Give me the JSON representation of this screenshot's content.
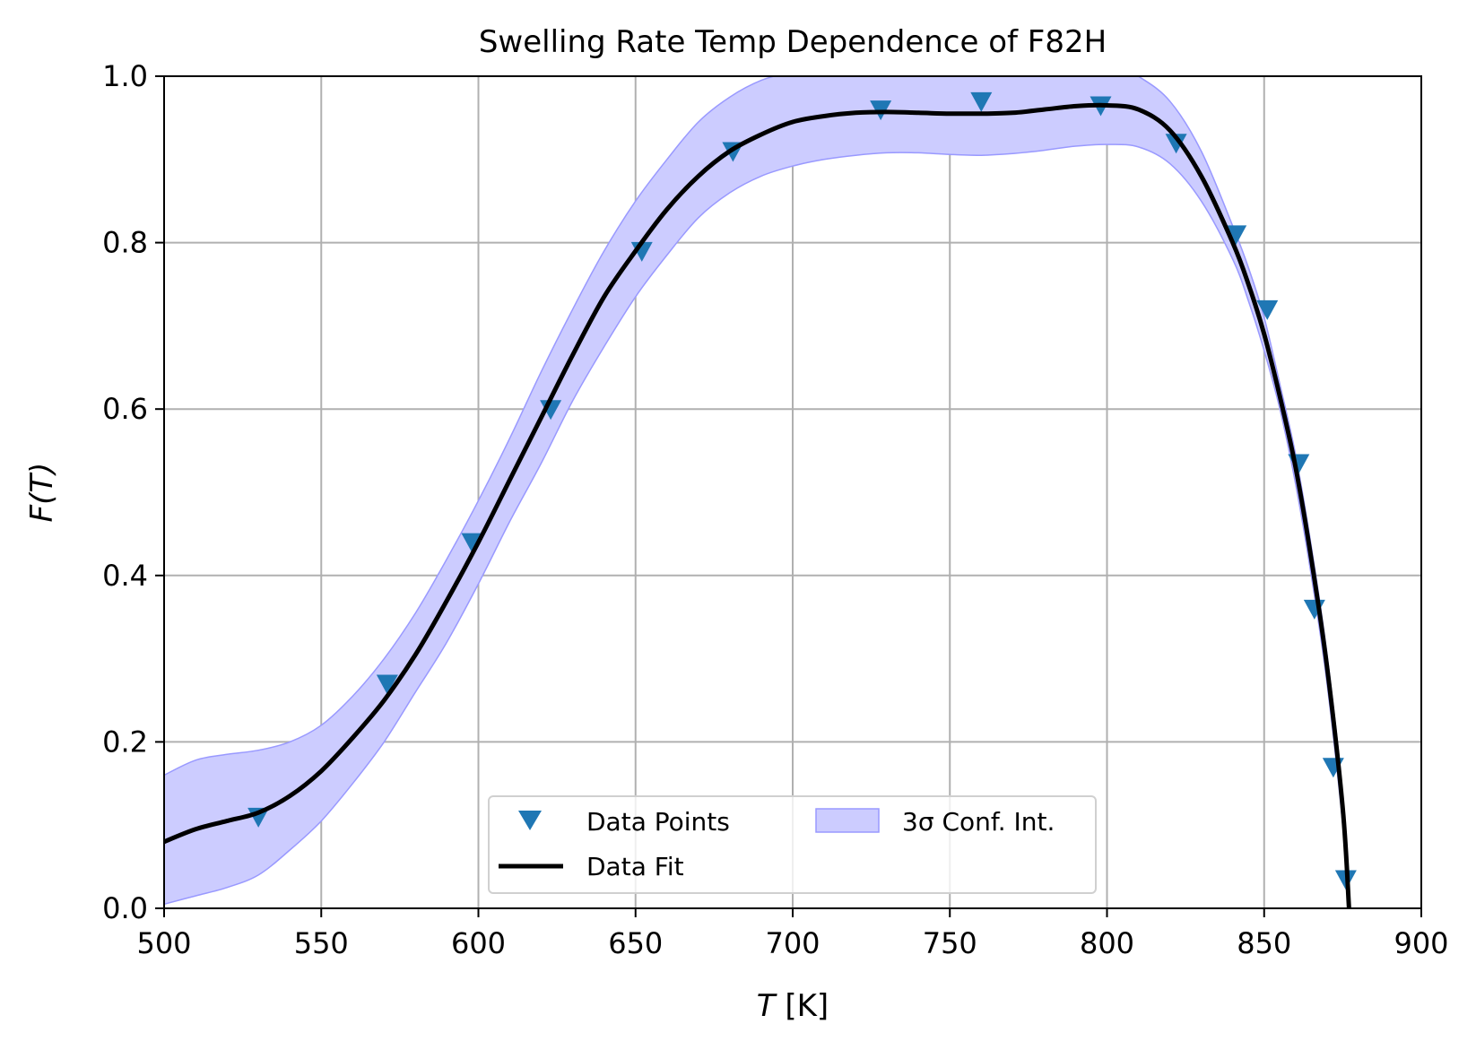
{
  "chart_data": {
    "type": "scatter",
    "title": "Swelling Rate Temp Dependence of F82H",
    "xlabel": {
      "var": "T",
      "unit": " [K]"
    },
    "ylabel": {
      "func": "F(",
      "var": "T",
      "close": ")"
    },
    "xlim": [
      500,
      900
    ],
    "ylim": [
      0,
      1.0
    ],
    "xticks": [
      500,
      550,
      600,
      650,
      700,
      750,
      800,
      850,
      900
    ],
    "xtick_labels": [
      "500",
      "550",
      "600",
      "650",
      "700",
      "750",
      "800",
      "850",
      "900"
    ],
    "yticks": [
      0,
      0.2,
      0.4,
      0.6,
      0.8,
      1.0
    ],
    "ytick_labels": [
      "0.0",
      "0.2",
      "0.4",
      "0.6",
      "0.8",
      "1.0"
    ],
    "grid": true,
    "legend_placement": "lower center",
    "colors": {
      "points": "#1f77b4",
      "fit": "#000000",
      "band_fill": "#ccccff",
      "band_edge": "#9999ff",
      "grid": "#b0b0b0"
    },
    "series": [
      {
        "name": "Data Points",
        "kind": "scatter",
        "marker": "triangle-down",
        "x": [
          530,
          571,
          598,
          623,
          652,
          681,
          728,
          760,
          798,
          822,
          841,
          851,
          861,
          866,
          872,
          876
        ],
        "y": [
          0.11,
          0.27,
          0.44,
          0.6,
          0.79,
          0.91,
          0.96,
          0.97,
          0.965,
          0.92,
          0.81,
          0.72,
          0.535,
          0.36,
          0.17,
          0.035
        ]
      },
      {
        "name": "Data Fit",
        "kind": "line",
        "x": [
          500,
          510,
          520,
          530,
          540,
          550,
          560,
          570,
          580,
          590,
          600,
          610,
          620,
          630,
          640,
          650,
          660,
          670,
          680,
          690,
          700,
          710,
          720,
          730,
          740,
          750,
          760,
          770,
          780,
          790,
          800,
          810,
          820,
          830,
          840,
          845,
          850,
          855,
          860,
          865,
          870,
          875,
          877
        ],
        "y": [
          0.08,
          0.095,
          0.105,
          0.115,
          0.135,
          0.165,
          0.205,
          0.25,
          0.305,
          0.37,
          0.44,
          0.515,
          0.59,
          0.665,
          0.735,
          0.79,
          0.84,
          0.88,
          0.91,
          0.93,
          0.945,
          0.952,
          0.956,
          0.957,
          0.956,
          0.955,
          0.955,
          0.956,
          0.96,
          0.964,
          0.965,
          0.96,
          0.935,
          0.88,
          0.8,
          0.75,
          0.69,
          0.615,
          0.53,
          0.42,
          0.29,
          0.12,
          0.0
        ]
      },
      {
        "name": "3σ Conf. Int.",
        "kind": "band",
        "x": [
          500,
          510,
          520,
          530,
          540,
          550,
          560,
          570,
          580,
          590,
          600,
          610,
          620,
          630,
          640,
          650,
          660,
          670,
          680,
          690,
          700,
          710,
          720,
          730,
          740,
          750,
          760,
          770,
          780,
          790,
          800,
          810,
          820,
          830,
          840,
          845,
          850,
          855,
          860,
          865,
          870,
          875,
          877
        ],
        "lower": [
          0.005,
          0.015,
          0.025,
          0.04,
          0.07,
          0.105,
          0.15,
          0.2,
          0.26,
          0.32,
          0.39,
          0.465,
          0.535,
          0.61,
          0.675,
          0.735,
          0.785,
          0.83,
          0.86,
          0.88,
          0.892,
          0.9,
          0.905,
          0.908,
          0.908,
          0.906,
          0.905,
          0.907,
          0.911,
          0.916,
          0.918,
          0.915,
          0.895,
          0.85,
          0.78,
          0.73,
          0.67,
          0.6,
          0.51,
          0.4,
          0.27,
          0.1,
          0.0
        ],
        "upper": [
          0.16,
          0.178,
          0.185,
          0.19,
          0.2,
          0.22,
          0.255,
          0.3,
          0.355,
          0.42,
          0.49,
          0.565,
          0.645,
          0.72,
          0.79,
          0.85,
          0.9,
          0.945,
          0.975,
          0.995,
          1.005,
          1.01,
          1.012,
          1.012,
          1.01,
          1.008,
          1.01,
          1.015,
          1.02,
          1.022,
          1.02,
          1.0,
          0.97,
          0.91,
          0.82,
          0.77,
          0.71,
          0.63,
          0.545,
          0.435,
          0.305,
          0.135,
          0.0
        ]
      }
    ],
    "legend": {
      "data_points": "Data Points",
      "data_fit": "Data Fit",
      "conf_int": "3σ Conf. Int."
    }
  }
}
